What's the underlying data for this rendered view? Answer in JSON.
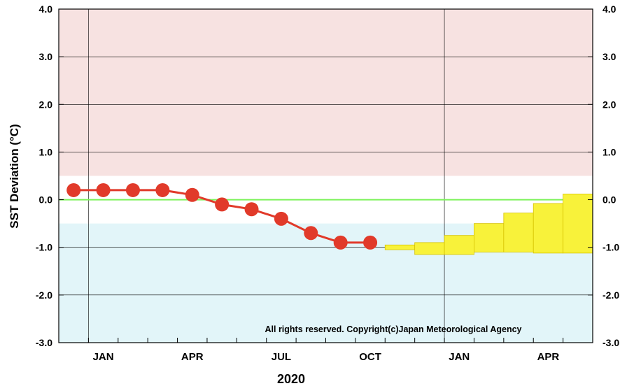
{
  "chart_data": {
    "type": "line",
    "title": "",
    "xlabel": "2020",
    "ylabel": "SST Deviation (°C)",
    "ylim": [
      -3.0,
      4.0
    ],
    "yticks": [
      "4.0",
      "3.0",
      "2.0",
      "1.0",
      "0.0",
      "-1.0",
      "-2.0",
      "-3.0"
    ],
    "xlim_months": [
      -0.5,
      17.5
    ],
    "x_tick_labels": [
      {
        "label": "JAN",
        "month": 1
      },
      {
        "label": "APR",
        "month": 4
      },
      {
        "label": "JUL",
        "month": 7
      },
      {
        "label": "OCT",
        "month": 10
      },
      {
        "label": "JAN",
        "month": 13
      },
      {
        "label": "APR",
        "month": 16
      }
    ],
    "major_gridlines_months": [
      0.5,
      12.5
    ],
    "grid": true,
    "thresholds": {
      "el_nino": 0.5,
      "la_nina": -0.5
    },
    "threshold_colors": {
      "warm": "#f7e2e1",
      "cold": "#e2f5f9"
    },
    "zero_line_color": "#7cf25a",
    "series": [
      {
        "kind": "observed",
        "color": "#e13a2a",
        "x": [
          "Nov 2019",
          "Dec 2019",
          "Jan 2020",
          "Feb 2020",
          "Mar 2020",
          "Apr 2020",
          "May 2020",
          "Jun 2020",
          "Jul 2020",
          "Aug 2020",
          "Sep 2020"
        ],
        "months": [
          0,
          1,
          2,
          3,
          4,
          5,
          6,
          7,
          8,
          9,
          10
        ],
        "values": [
          0.2,
          0.2,
          0.2,
          0.2,
          0.1,
          -0.1,
          -0.2,
          -0.4,
          -0.7,
          -0.9,
          -0.9
        ]
      },
      {
        "kind": "forecast-range",
        "color": "#f8f23a",
        "edge_color": "#d6c200",
        "x": [
          "Oct 2020",
          "Nov 2020",
          "Dec 2020",
          "Jan 2021",
          "Feb 2021",
          "Mar 2021",
          "Apr 2021"
        ],
        "months": [
          11,
          12,
          13,
          14,
          15,
          16,
          17
        ],
        "upper": [
          -0.95,
          -0.9,
          -0.75,
          -0.5,
          -0.28,
          -0.08,
          0.12
        ],
        "lower": [
          -1.05,
          -1.15,
          -1.15,
          -1.1,
          -1.1,
          -1.12,
          -1.12
        ]
      }
    ],
    "annotation": "All rights reserved. Copyright(c)Japan Meteorological Agency"
  }
}
